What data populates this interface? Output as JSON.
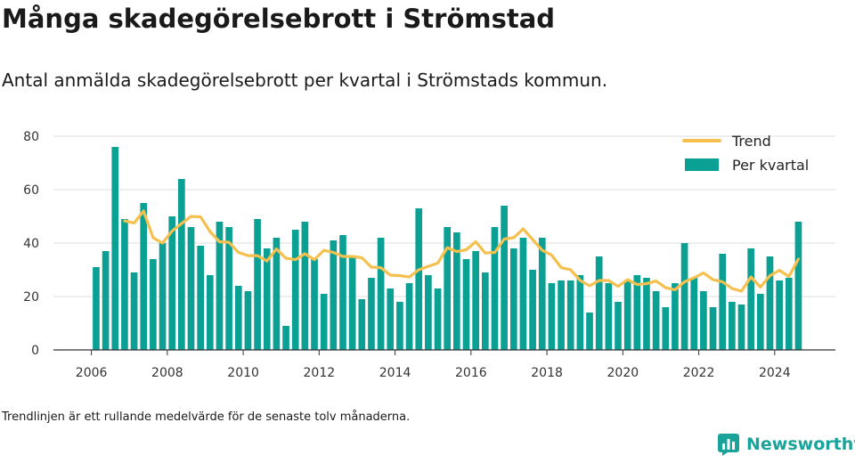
{
  "title": "Många skadegörelsebrott i Strömstad",
  "subtitle": "Antal anmälda skadegörelsebrott per kvartal i Strömstads kommun.",
  "footnote": "Trendlinjen är ett rullande medelvärde för de senaste tolv månaderna.",
  "brand": {
    "name": "Newsworthy",
    "color": "#1aa39a",
    "icon": "newsworthy-logo-icon"
  },
  "colors": {
    "bars": "#0aa094",
    "trend": "#f5c04e",
    "grid": "#dddddd",
    "axis": "#333333"
  },
  "chart_data": {
    "type": "bar",
    "x_start_year": 2006,
    "x_labels": [
      "2006",
      "2008",
      "2010",
      "2012",
      "2014",
      "2016",
      "2018",
      "2020",
      "2022",
      "2024"
    ],
    "xlim": [
      2005.0,
      2025.6
    ],
    "ylim": [
      0,
      80
    ],
    "y_ticks": [
      0,
      20,
      40,
      60,
      80
    ],
    "grid": true,
    "legend_position": "top-right",
    "series": [
      {
        "name": "Per kvartal",
        "type": "bar",
        "values": [
          31,
          37,
          76,
          49,
          29,
          55,
          34,
          40,
          50,
          64,
          46,
          39,
          28,
          48,
          46,
          24,
          22,
          49,
          38,
          42,
          9,
          45,
          48,
          34,
          21,
          41,
          43,
          35,
          19,
          27,
          42,
          23,
          18,
          25,
          53,
          28,
          23,
          46,
          44,
          34,
          37,
          29,
          46,
          54,
          38,
          42,
          30,
          42,
          25,
          26,
          26,
          28,
          14,
          35,
          25,
          18,
          26,
          28,
          27,
          22,
          16,
          25,
          40,
          27,
          22,
          16,
          36,
          18,
          17,
          38,
          21,
          35,
          26,
          27,
          48
        ]
      },
      {
        "name": "Trend",
        "type": "line",
        "start_index": 3,
        "values": [
          48.3,
          47.5,
          52,
          42,
          40,
          44.5,
          47.3,
          50,
          49.8,
          44.3,
          40.5,
          40.3,
          36.5,
          35.3,
          35.3,
          33.3,
          37.8,
          34.3,
          33.8,
          36,
          33.8,
          37.3,
          36.5,
          35,
          35,
          34.5,
          31,
          30.8,
          28,
          27.8,
          27.3,
          30,
          31.3,
          32.5,
          38.3,
          36.8,
          37.5,
          40.5,
          36.3,
          36.5,
          41.5,
          42,
          45.3,
          41.3,
          37.3,
          35.5,
          30.8,
          30,
          26,
          24,
          26,
          26,
          23.8,
          26.3,
          24.5,
          24.8,
          25.8,
          23.3,
          22.5,
          25.5,
          27,
          28.8,
          26.3,
          25.5,
          23,
          22,
          27.3,
          23.5,
          27.8,
          29.8,
          27.5,
          34
        ]
      }
    ]
  }
}
